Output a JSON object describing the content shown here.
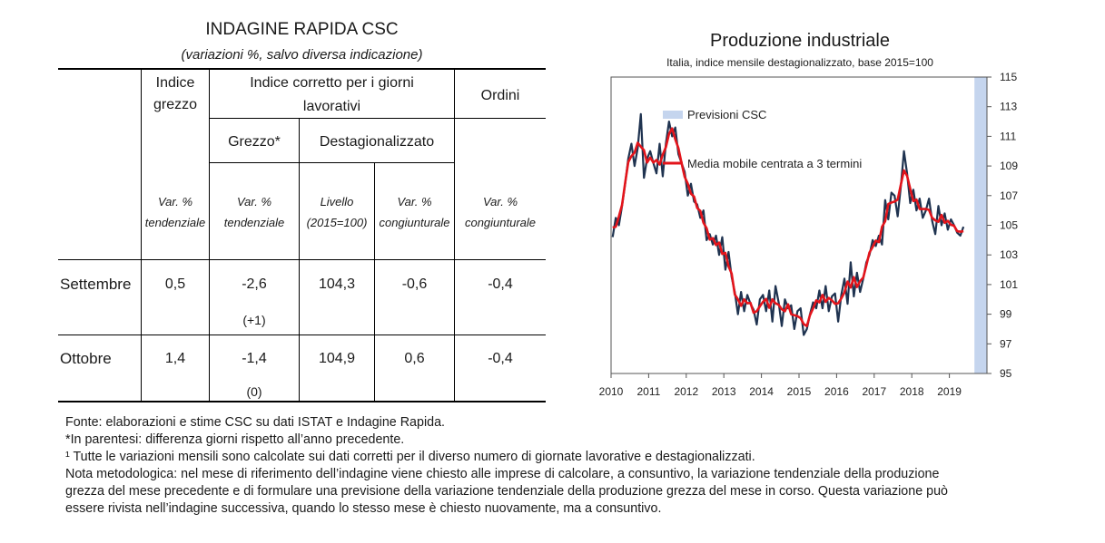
{
  "table": {
    "title": "INDAGINE RAPIDA CSC",
    "subtitle": "(variazioni %, salvo diversa indicazione)",
    "headers": {
      "grezzo_line1": "Indice",
      "grezzo_line2": "grezzo",
      "corretto_line1": "Indice corretto per i giorni",
      "corretto_line2": "lavorativi",
      "ordini": "Ordini",
      "grezzo_star": "Grezzo*",
      "destag": "Destagionalizzato"
    },
    "subheaders": {
      "c1_l1": "Var. %",
      "c1_l2": "tendenziale",
      "c2_l1": "Var. %",
      "c2_l2": "tendenziale",
      "c3_l1": "Livello",
      "c3_l2": "(2015=100)",
      "c4_l1": "Var. %",
      "c4_l2": "congiunturale",
      "c5_l1": "Var. %",
      "c5_l2": "congiunturale"
    },
    "rows": [
      {
        "label": "Settembre",
        "c1": "0,5",
        "c2": "-2,6",
        "c2_paren": "(+1)",
        "c3": "104,3",
        "c4": "-0,6",
        "c5": "-0,4"
      },
      {
        "label": "Ottobre",
        "c1": "1,4",
        "c2": "-1,4",
        "c2_paren": "(0)",
        "c3": "104,9",
        "c4": "0,6",
        "c5": "-0,4"
      }
    ]
  },
  "notes": [
    "Fonte: elaborazioni e stime CSC su dati ISTAT e Indagine Rapida.",
    "*In parentesi: differenza giorni rispetto all’anno precedente.",
    "¹ Tutte le variazioni mensili sono calcolate sui dati corretti per il diverso numero di giornate lavorative e destagionalizzati.",
    "Nota metodologica: nel mese di riferimento dell’indagine viene chiesto alle imprese di calcolare, a consuntivo, la variazione tendenziale della produzione",
    "grezza del mese precedente e di formulare una previsione della variazione tendenziale della produzione grezza del mese in corso. Questa variazione può",
    "essere rivista nell’indagine successiva, quando lo stesso mese è chiesto nuovamente, ma a consuntivo."
  ],
  "chart_data": {
    "type": "line",
    "title": "Produzione industriale",
    "subtitle": "Italia, indice mensile destagionalizzato, base 2015=100",
    "ylim": [
      95,
      115
    ],
    "yticks": [
      95,
      97,
      99,
      101,
      103,
      105,
      107,
      109,
      111,
      113,
      115
    ],
    "xticks": [
      "2010",
      "2011",
      "2012",
      "2013",
      "2014",
      "2015",
      "2016",
      "2017",
      "2018",
      "2019"
    ],
    "x_start": "2010-01",
    "x_end": "2019-12",
    "y_axis_side": "right",
    "grid": false,
    "legend": [
      {
        "label": "Previsioni CSC",
        "color": "#c5d5ee",
        "kind": "band"
      },
      {
        "label": "Media mobile centrata a 3 termini",
        "color": "#e3141b",
        "kind": "line"
      }
    ],
    "forecast_band": {
      "from": "2019-09",
      "to": "2019-10"
    },
    "series": [
      {
        "color": "#1f3350",
        "values": [
          104.2,
          105.5,
          105.0,
          106.3,
          107.8,
          109.5,
          110.5,
          109.0,
          110.2,
          112.5,
          108.2,
          109.5,
          110.0,
          109.2,
          108.5,
          110.5,
          108.3,
          110.5,
          112.0,
          111.0,
          111.6,
          109.8,
          109.2,
          108.6,
          107.0,
          107.8,
          106.6,
          106.4,
          105.5,
          106.0,
          104.0,
          104.4,
          103.7,
          104.3,
          103.0,
          104.2,
          102.0,
          103.2,
          101.5,
          100.5,
          99.0,
          100.5,
          99.2,
          100.3,
          99.7,
          99.3,
          98.3,
          100.0,
          100.3,
          99.2,
          100.6,
          98.5,
          100.9,
          99.8,
          98.2,
          100.0,
          99.4,
          99.6,
          98.0,
          99.2,
          99.4,
          97.6,
          98.0,
          99.0,
          99.8,
          99.4,
          100.6,
          99.4,
          100.9,
          99.2,
          100.2,
          100.4,
          98.5,
          100.3,
          101.4,
          99.7,
          102.5,
          100.2,
          101.8,
          100.5,
          101.4,
          102.5,
          103.0,
          104.0,
          103.6,
          104.3,
          103.7,
          106.7,
          105.4,
          107.2,
          107.0,
          105.6,
          107.6,
          110.0,
          108.5,
          106.5,
          107.4,
          106.0,
          106.8,
          105.5,
          106.0,
          106.8,
          105.3,
          104.4,
          106.3,
          105.0,
          105.8,
          104.7,
          105.4,
          105.0,
          104.5,
          104.3,
          104.9
        ]
      }
    ]
  }
}
